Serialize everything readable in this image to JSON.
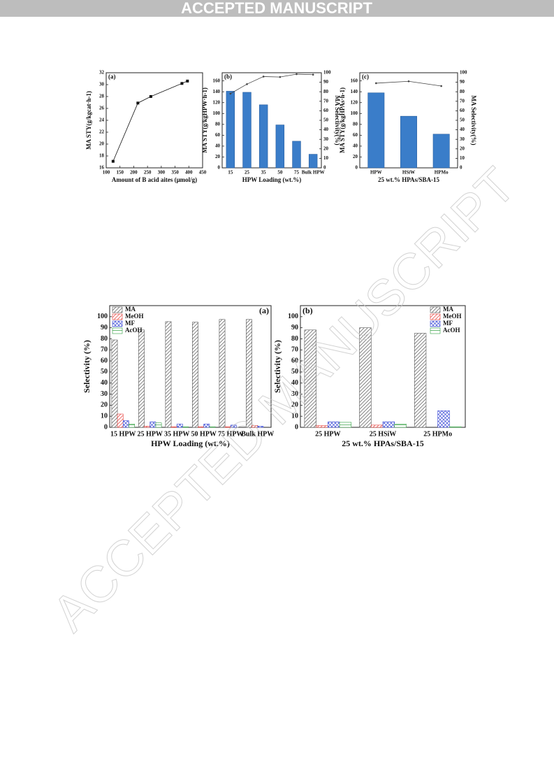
{
  "header": {
    "title": "ACCEPTED MANUSCRIPT"
  },
  "watermark": "ACCEPTED MANUSCRIPT",
  "chart_data": [
    {
      "type": "line",
      "panel_label": "(a)",
      "xlabel": "Amount of B acid aites (μmol/g)",
      "ylabel": "MA STY(g/kgcat·h-1)",
      "x": [
        125,
        215,
        262,
        375,
        395
      ],
      "series": [
        {
          "values": [
            17.1,
            26.9,
            28.0,
            30.2,
            30.6
          ],
          "color": "#111",
          "marker": "square"
        }
      ],
      "xlim": [
        100,
        450
      ],
      "xticks": [
        100,
        150,
        200,
        250,
        300,
        350,
        400,
        450
      ],
      "ylim": [
        16,
        32
      ],
      "yticks": [
        16,
        18,
        20,
        22,
        24,
        26,
        28,
        30,
        32
      ]
    },
    {
      "type": "bar",
      "panel_label": "(b)",
      "xlabel": "HPW Loading (wt.%)",
      "ylabel": "MA STY(g/kgHPW·h-1)",
      "y2label": "MA Selectivity(%)",
      "categories": [
        "15",
        "25",
        "35",
        "50",
        "75",
        "Bulk HPW"
      ],
      "series": [
        {
          "values": [
            141,
            139,
            116,
            79,
            49,
            25
          ],
          "color": "#3a7dc9"
        },
        {
          "type": "line",
          "axis": "y2",
          "values": [
            78,
            88,
            96,
            95.5,
            98.5,
            98
          ],
          "color": "#444",
          "marker": "circle"
        }
      ],
      "ylim": [
        0,
        175
      ],
      "yticks": [
        0,
        20,
        40,
        60,
        80,
        100,
        120,
        140,
        160
      ],
      "y2lim": [
        0,
        100
      ],
      "y2ticks": [
        0,
        10,
        20,
        30,
        40,
        50,
        60,
        70,
        80,
        90,
        100
      ]
    },
    {
      "type": "bar",
      "panel_label": "(c)",
      "xlabel": "25 wt.% HPAs/SBA-15",
      "ylabel": "MA STY(g/kgHPAs·h-1)",
      "y2label": "MA Selectivity(%)",
      "categories": [
        "HPW",
        "HSiW",
        "HPMo"
      ],
      "series": [
        {
          "values": [
            138,
            95,
            62
          ],
          "color": "#3a7dc9"
        },
        {
          "type": "line",
          "axis": "y2",
          "values": [
            89,
            91,
            86
          ],
          "color": "#444",
          "marker": "circle"
        }
      ],
      "ylim": [
        0,
        175
      ],
      "yticks": [
        0,
        20,
        40,
        60,
        80,
        100,
        120,
        140,
        160
      ],
      "y2lim": [
        0,
        100
      ],
      "y2ticks": [
        0,
        10,
        20,
        30,
        40,
        50,
        60,
        70,
        80,
        90,
        100
      ]
    },
    {
      "type": "bar",
      "panel_label": "(a)",
      "legend": "upper left",
      "xlabel": "HPW Loading (wt.%)",
      "ylabel": "Selectivity (%)",
      "categories": [
        "15 HPW",
        "25 HPW",
        "35 HPW",
        "50 HPW",
        "75 HPW",
        "Bulk HPW"
      ],
      "series": [
        {
          "name": "MA",
          "color": "#555",
          "pattern": "diagonal",
          "values": [
            79,
            88,
            95.5,
            95,
            97.5,
            97.5
          ]
        },
        {
          "name": "MeOH",
          "color": "#e53935",
          "pattern": "diagonal",
          "values": [
            12,
            1,
            0.5,
            0.5,
            0.5,
            1.5
          ]
        },
        {
          "name": "MF",
          "color": "#3949d6",
          "pattern": "cross",
          "values": [
            6,
            5,
            3,
            3,
            2,
            1
          ]
        },
        {
          "name": "AcOH",
          "color": "#2e9e3e",
          "pattern": "horizontal",
          "values": [
            3,
            4,
            0.5,
            0.5,
            0,
            0
          ]
        }
      ],
      "ylim": [
        0,
        110
      ],
      "yticks": [
        0,
        10,
        20,
        30,
        40,
        50,
        60,
        70,
        80,
        90,
        100
      ]
    },
    {
      "type": "bar",
      "panel_label": "(b)",
      "legend": "upper right",
      "xlabel": "25 wt.% HPAs/SBA-15",
      "ylabel": "Selectivity (%)",
      "categories": [
        "25 HPW",
        "25 HSiW",
        "25 HPMo"
      ],
      "series": [
        {
          "name": "MA",
          "color": "#555",
          "pattern": "diagonal",
          "values": [
            88,
            90,
            85
          ]
        },
        {
          "name": "MeOH",
          "color": "#e53935",
          "pattern": "diagonal",
          "values": [
            1.5,
            2,
            0
          ]
        },
        {
          "name": "MF",
          "color": "#3949d6",
          "pattern": "cross",
          "values": [
            5,
            5,
            15
          ]
        },
        {
          "name": "AcOH",
          "color": "#2e9e3e",
          "pattern": "horizontal",
          "values": [
            4.5,
            3,
            0.5
          ]
        }
      ],
      "ylim": [
        0,
        110
      ],
      "yticks": [
        0,
        10,
        20,
        30,
        40,
        50,
        60,
        70,
        80,
        90,
        100
      ]
    }
  ]
}
